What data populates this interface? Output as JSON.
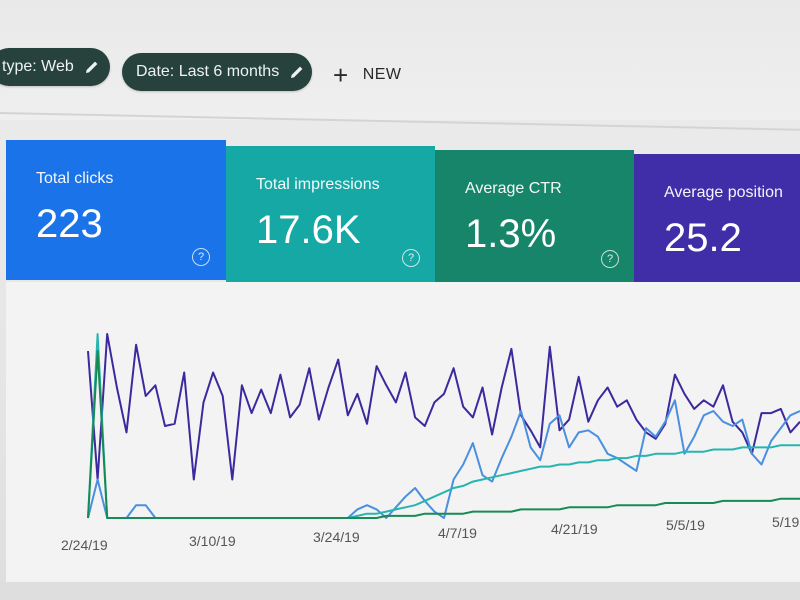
{
  "filters": {
    "type_chip": "type: Web",
    "date_chip": "Date: Last 6 months",
    "new_label": "NEW"
  },
  "metrics": {
    "clicks": {
      "label": "Total clicks",
      "value": "223",
      "color": "#1a73e8"
    },
    "impressions": {
      "label": "Total impressions",
      "value": "17.6K",
      "color": "#15a8a5"
    },
    "ctr": {
      "label": "Average CTR",
      "value": "1.3%",
      "color": "#17856a"
    },
    "position": {
      "label": "Average position",
      "value": "25.2",
      "color": "#3f2ea8"
    },
    "help_glyph": "?"
  },
  "chart_data": {
    "type": "line",
    "x_ticks": [
      "2/24/19",
      "3/10/19",
      "3/24/19",
      "4/7/19",
      "4/21/19",
      "5/5/19",
      "5/19"
    ],
    "series": [
      {
        "color": "#3b2a9e",
        "values": [
          0.78,
          0.18,
          0.86,
          0.61,
          0.4,
          0.81,
          0.57,
          0.62,
          0.43,
          0.44,
          0.68,
          0.18,
          0.54,
          0.68,
          0.57,
          0.18,
          0.62,
          0.49,
          0.6,
          0.49,
          0.67,
          0.47,
          0.53,
          0.7,
          0.46,
          0.61,
          0.74,
          0.48,
          0.58,
          0.44,
          0.71,
          0.62,
          0.54,
          0.68,
          0.47,
          0.43,
          0.54,
          0.58,
          0.7,
          0.52,
          0.47,
          0.61,
          0.39,
          0.61,
          0.79,
          0.48,
          0.41,
          0.33,
          0.8,
          0.41,
          0.46,
          0.66,
          0.45,
          0.55,
          0.61,
          0.52,
          0.55,
          0.46,
          0.4,
          0.37,
          0.44,
          0.67,
          0.58,
          0.51,
          0.55,
          0.52,
          0.62,
          0.45,
          0.4,
          0.3,
          0.49,
          0.49,
          0.51,
          0.4,
          0.45
        ]
      },
      {
        "color": "#4a8fe0",
        "values": [
          0.0,
          0.18,
          0.0,
          0.0,
          0.0,
          0.06,
          0.06,
          0.0,
          0.0,
          0.0,
          0.0,
          0.0,
          0.0,
          0.0,
          0.0,
          0.0,
          0.0,
          0.0,
          0.0,
          0.0,
          0.0,
          0.0,
          0.0,
          0.0,
          0.0,
          0.0,
          0.0,
          0.0,
          0.04,
          0.06,
          0.04,
          0.0,
          0.05,
          0.1,
          0.14,
          0.08,
          0.03,
          0.0,
          0.18,
          0.25,
          0.35,
          0.2,
          0.17,
          0.28,
          0.38,
          0.5,
          0.33,
          0.27,
          0.44,
          0.48,
          0.33,
          0.4,
          0.41,
          0.38,
          0.3,
          0.28,
          0.25,
          0.22,
          0.42,
          0.38,
          0.45,
          0.55,
          0.3,
          0.38,
          0.48,
          0.5,
          0.45,
          0.43,
          0.46,
          0.3,
          0.25,
          0.36,
          0.42,
          0.48,
          0.5
        ]
      },
      {
        "color": "#26b5b0",
        "values": [
          0.0,
          0.86,
          0.0,
          0.0,
          0.0,
          0.0,
          0.0,
          0.0,
          0.0,
          0.0,
          0.0,
          0.0,
          0.0,
          0.0,
          0.0,
          0.0,
          0.0,
          0.0,
          0.0,
          0.0,
          0.0,
          0.0,
          0.0,
          0.0,
          0.0,
          0.0,
          0.0,
          0.0,
          0.01,
          0.02,
          0.02,
          0.03,
          0.04,
          0.05,
          0.06,
          0.08,
          0.1,
          0.12,
          0.14,
          0.15,
          0.17,
          0.18,
          0.19,
          0.2,
          0.21,
          0.22,
          0.23,
          0.24,
          0.24,
          0.25,
          0.25,
          0.26,
          0.26,
          0.27,
          0.27,
          0.28,
          0.28,
          0.29,
          0.29,
          0.3,
          0.3,
          0.3,
          0.31,
          0.31,
          0.31,
          0.32,
          0.32,
          0.32,
          0.33,
          0.33,
          0.33,
          0.33,
          0.34,
          0.34,
          0.34
        ]
      },
      {
        "color": "#178a55",
        "values": [
          0.0,
          0.78,
          0.0,
          0.0,
          0.0,
          0.0,
          0.0,
          0.0,
          0.0,
          0.0,
          0.0,
          0.0,
          0.0,
          0.0,
          0.0,
          0.0,
          0.0,
          0.0,
          0.0,
          0.0,
          0.0,
          0.0,
          0.0,
          0.0,
          0.0,
          0.0,
          0.0,
          0.0,
          0.0,
          0.0,
          0.0,
          0.01,
          0.01,
          0.01,
          0.01,
          0.02,
          0.02,
          0.02,
          0.02,
          0.02,
          0.03,
          0.03,
          0.03,
          0.03,
          0.03,
          0.04,
          0.04,
          0.04,
          0.04,
          0.04,
          0.05,
          0.05,
          0.05,
          0.05,
          0.05,
          0.06,
          0.06,
          0.06,
          0.06,
          0.06,
          0.07,
          0.07,
          0.07,
          0.07,
          0.07,
          0.07,
          0.08,
          0.08,
          0.08,
          0.08,
          0.08,
          0.08,
          0.09,
          0.09,
          0.09
        ]
      }
    ]
  }
}
